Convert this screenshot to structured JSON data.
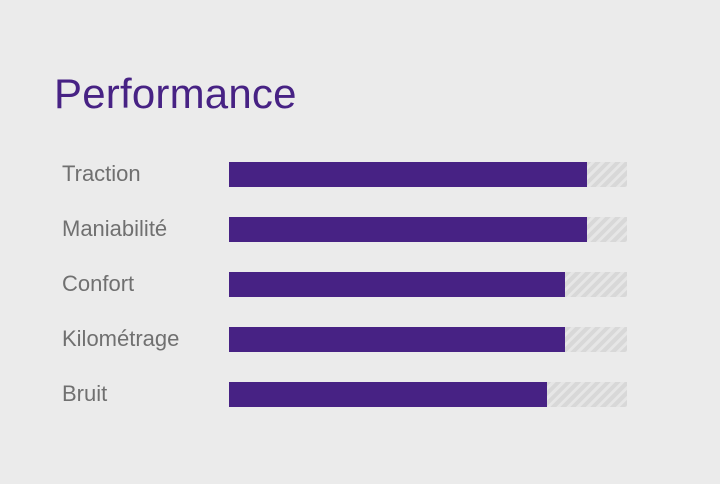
{
  "colors": {
    "accent": "#472284",
    "label": "#707070",
    "background": "#ebebeb"
  },
  "chart_data": {
    "type": "bar",
    "orientation": "horizontal",
    "title": "Performance",
    "categories": [
      "Traction",
      "Maniabilité",
      "Confort",
      "Kilométrage",
      "Bruit"
    ],
    "values": [
      90,
      90,
      84.5,
      84.5,
      80
    ],
    "xlim": [
      0,
      100
    ],
    "grid": false,
    "legend": "none"
  }
}
